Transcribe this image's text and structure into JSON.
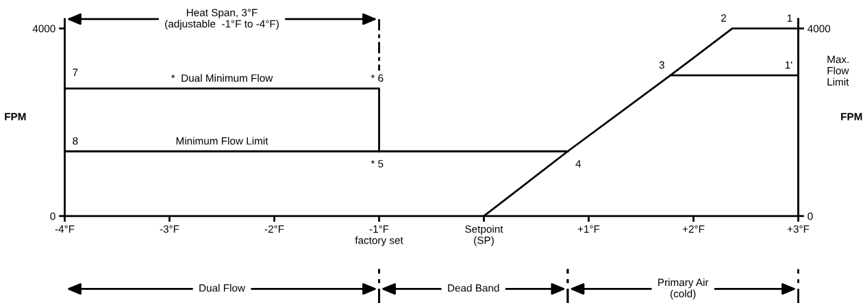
{
  "chart_data": {
    "type": "line",
    "ylabel": "FPM",
    "y2label": "FPM",
    "series": [
      {
        "color": "#000000",
        "x": [
          -4,
          -1,
          -1
        ],
        "values": [
          2720,
          2720,
          1380
        ]
      },
      {
        "color": "#000000",
        "x": [
          -4,
          0.8
        ],
        "values": [
          1380,
          1380
        ]
      },
      {
        "color": "#000000",
        "x": [
          0,
          0.8,
          1.78,
          2.37,
          3
        ],
        "values": [
          0,
          1380,
          3000,
          4000,
          4000
        ]
      },
      {
        "color": "#000000",
        "x": [
          1.78,
          3
        ],
        "values": [
          3000,
          3000
        ]
      },
      {
        "color": "#000000",
        "x": [
          -1,
          -1
        ],
        "values": [
          4200,
          3100
        ],
        "line_style": "dashed"
      }
    ],
    "xlim": [
      -4,
      3
    ],
    "ylim": [
      0,
      4200
    ],
    "y2lim": [
      0,
      4200
    ],
    "xticks": [
      {
        "value": -4,
        "label": "-4°F"
      },
      {
        "value": -3,
        "label": "-3°F"
      },
      {
        "value": -2,
        "label": "-2°F"
      },
      {
        "value": -1,
        "label": "-1°F\nfactory set"
      },
      {
        "value": 0,
        "label": "Setpoint\n(SP)"
      },
      {
        "value": 1,
        "label": "+1°F"
      },
      {
        "value": 2,
        "label": "+2°F"
      },
      {
        "value": 3,
        "label": "+3°F"
      }
    ],
    "yticks": [
      0,
      4000
    ],
    "y2ticks": [
      0,
      4000
    ],
    "annotations": [
      {
        "text": "1",
        "x": 3,
        "y": 4000
      },
      {
        "text": "2",
        "x": 2.37,
        "y": 4000
      },
      {
        "text": "1'",
        "x": 3,
        "y": 3000
      },
      {
        "text": "3",
        "x": 1.78,
        "y": 3000
      },
      {
        "text": "4",
        "x": 0.8,
        "y": 1380
      },
      {
        "text": "* 5",
        "x": -1,
        "y": 1380
      },
      {
        "text": "* 6",
        "x": -1,
        "y": 2720
      },
      {
        "text": "7",
        "x": -4,
        "y": 2720
      },
      {
        "text": "8",
        "x": -4,
        "y": 1380
      },
      {
        "text": "*  Dual Minimum Flow",
        "x": -2.5,
        "y": 2720
      },
      {
        "text": "Minimum Flow Limit",
        "x": -2.5,
        "y": 1380
      },
      {
        "text": "Max.\nFlow\nLimit",
        "x": 3,
        "y": 3000
      },
      "Heat Span, 3°F\n(adjustable  -1°F to -4°F)",
      "Dual Flow",
      "Dead Band",
      "Primary Air\n(cold)"
    ],
    "grid": false,
    "marker": "none",
    "line_style": "solid"
  }
}
